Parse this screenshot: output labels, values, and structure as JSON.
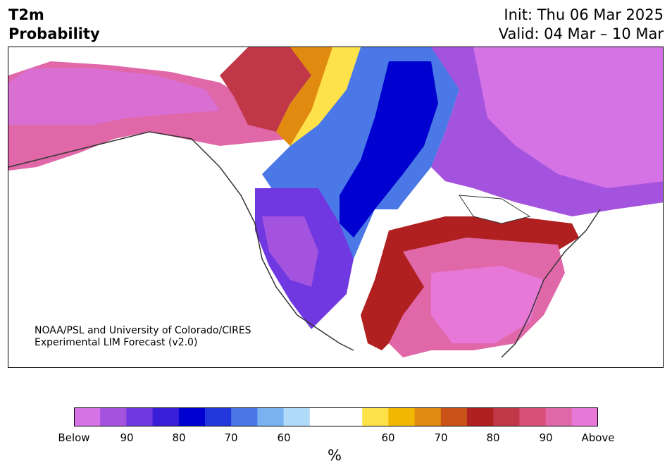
{
  "header": {
    "variable": "T2m",
    "product": "Probability",
    "init": "Init: Thu 06 Mar 2025",
    "valid": "Valid: 04 Mar – 10 Mar"
  },
  "credit": {
    "line1": "NOAA/PSL and University of Colorado/CIRES",
    "line2": "Experimental LIM Forecast (v2.0)"
  },
  "map": {
    "region": "North America",
    "description": "Probability of below/above normal 2m temperature; below-normal (blue/purple) across western Canada and western US, above-normal (red/pink) across Alaska, eastern US and southern Texas."
  },
  "colorbar": {
    "unit": "%",
    "tick_labels": [
      "Below",
      "90",
      "80",
      "70",
      "60",
      "60",
      "70",
      "80",
      "90",
      "Above"
    ],
    "colors": [
      "#d572e6",
      "#a453de",
      "#7038e0",
      "#3a1dd8",
      "#0000d0",
      "#2238dd",
      "#4a78e6",
      "#78b2f0",
      "#b0dcfa",
      "#ffffff",
      "#ffffff",
      "#ffe24a",
      "#f0b800",
      "#e08a10",
      "#c85218",
      "#b02020",
      "#c03848",
      "#d85078",
      "#e068a8",
      "#e878d8"
    ]
  }
}
